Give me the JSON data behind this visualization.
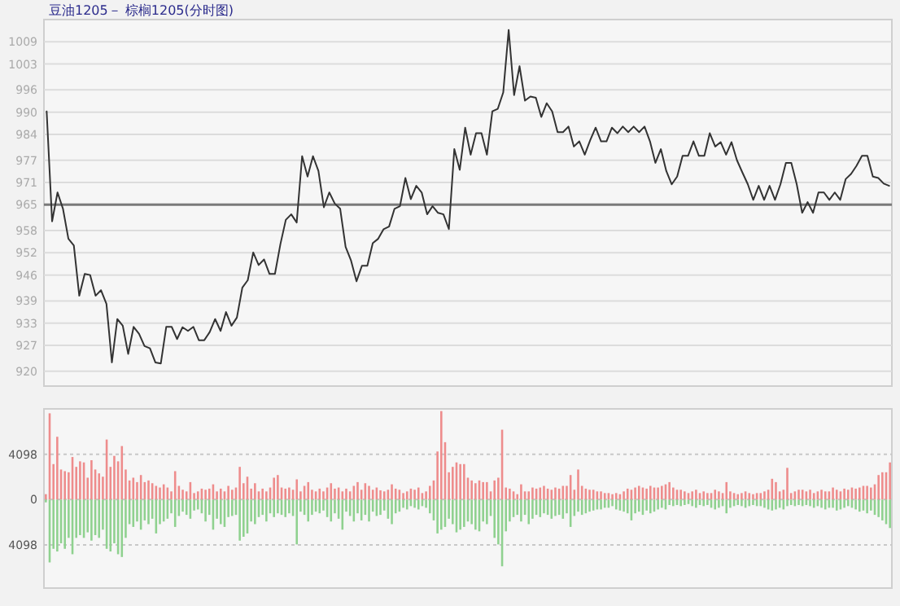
{
  "chart_data": [
    {
      "type": "line",
      "title": "豆油1205－ 棕榈1205(分时图)",
      "categories": [
        null,
        null,
        null,
        null,
        null,
        null,
        null,
        null,
        null,
        null,
        null,
        null,
        null,
        null,
        null,
        null,
        null,
        null,
        null,
        null,
        null,
        null,
        null,
        null,
        null,
        null,
        null,
        null,
        null,
        null,
        null,
        null,
        null,
        null,
        null,
        null,
        null,
        null,
        null,
        null,
        null,
        null,
        null,
        null,
        null,
        null,
        null,
        null,
        null,
        null,
        null,
        null,
        null,
        null,
        null,
        null,
        null,
        null,
        null,
        null,
        null,
        null,
        null,
        null,
        null,
        null,
        null,
        null,
        null,
        null,
        null,
        null,
        null,
        null,
        null,
        null,
        null,
        null,
        null,
        null,
        null,
        null,
        null,
        null,
        null,
        null,
        null,
        null,
        null,
        null,
        null,
        null,
        null,
        null,
        null,
        null,
        null,
        null,
        null,
        null,
        null,
        null,
        null,
        null,
        null,
        null,
        null,
        null,
        null,
        null,
        null,
        null,
        null,
        null,
        null,
        null,
        null,
        null,
        null,
        null,
        null,
        null,
        null,
        null,
        null,
        null,
        null,
        null,
        null,
        null,
        null,
        null,
        null,
        null,
        null,
        null,
        null,
        null,
        null,
        null,
        null,
        null,
        null,
        null,
        null,
        null,
        null,
        null,
        null,
        null,
        null,
        null,
        null,
        null,
        null,
        null
      ],
      "ylim": [
        916,
        1015
      ],
      "yticks": [
        920,
        927,
        933,
        939,
        946,
        952,
        958,
        965,
        971,
        977,
        984,
        990,
        996,
        1003,
        1009
      ],
      "grid": "y",
      "tick_labels": "y",
      "ref_lines": [
        {
          "axis": "y",
          "value": 965,
          "color": "#7a7a7a"
        }
      ],
      "series": [
        {
          "color": "#333333",
          "values": [
            990.2,
            960.5,
            968.3,
            963.9,
            955.8,
            954,
            940.4,
            946.3,
            946,
            940.4,
            941.9,
            938.2,
            922.4,
            934.1,
            932.3,
            924.7,
            932,
            930.1,
            926.8,
            926.2,
            922.4,
            922.1,
            932,
            932,
            928.7,
            931.9,
            930.9,
            932,
            928.4,
            928.4,
            930.6,
            934.1,
            930.9,
            936,
            932.3,
            934.5,
            942.6,
            944.6,
            952.1,
            948.7,
            950.2,
            946.3,
            946.3,
            954.3,
            960.9,
            962.4,
            960.2,
            978.1,
            972.6,
            978.1,
            974.1,
            964.3,
            968.3,
            965.3,
            963.9,
            953.6,
            949.9,
            944.3,
            948.5,
            948.5,
            954.6,
            955.8,
            958.4,
            959.1,
            963.9,
            964.6,
            972.2,
            966.5,
            970.1,
            968.3,
            962.4,
            964.6,
            962.8,
            962.4,
            958.4,
            980,
            974.4,
            985.8,
            978.5,
            984.3,
            984.3,
            978.5,
            990.2,
            990.9,
            995.3,
            1012.2,
            994.6,
            1002.4,
            993.1,
            994.2,
            993.9,
            988.7,
            992.4,
            990.2,
            984.6,
            984.6,
            986.1,
            980.7,
            982.1,
            978.5,
            982.4,
            985.8,
            982.1,
            982.1,
            985.8,
            984.3,
            986.1,
            984.6,
            986.1,
            984.6,
            986.1,
            982.1,
            976.3,
            980,
            974.1,
            970.5,
            972.6,
            978.2,
            978.2,
            982.1,
            978.2,
            978.2,
            984.3,
            980.7,
            981.9,
            978.5,
            981.9,
            977,
            973.7,
            970.5,
            966.3,
            970.1,
            966.3,
            970.1,
            966.3,
            970.5,
            976.3,
            976.3,
            970.5,
            962.8,
            965.7,
            962.8,
            968.3,
            968.3,
            966.3,
            968.3,
            966.3,
            971.9,
            973.3,
            975.5,
            978.2,
            978.2,
            972.6,
            972.2,
            970.7,
            970.1
          ]
        }
      ]
    },
    {
      "type": "bar",
      "stacked": true,
      "ylim": [
        -8000,
        8200
      ],
      "yticks": [
        {
          "value": -4098,
          "label": "4098"
        },
        0,
        4098
      ],
      "grid": "y",
      "tick_labels": "y",
      "categories": [
        null,
        null,
        null,
        null,
        null,
        null,
        null,
        null,
        null,
        null,
        null,
        null,
        null,
        null,
        null,
        null,
        null,
        null,
        null,
        null,
        null,
        null,
        null,
        null,
        null,
        null,
        null,
        null,
        null,
        null,
        null,
        null,
        null,
        null,
        null,
        null,
        null,
        null,
        null,
        null,
        null,
        null,
        null,
        null,
        null,
        null,
        null,
        null,
        null,
        null,
        null,
        null,
        null,
        null,
        null,
        null,
        null,
        null,
        null,
        null,
        null,
        null,
        null,
        null,
        null,
        null,
        null,
        null,
        null,
        null,
        null,
        null,
        null,
        null,
        null,
        null,
        null,
        null,
        null,
        null,
        null,
        null,
        null,
        null,
        null,
        null,
        null,
        null,
        null,
        null,
        null,
        null,
        null,
        null,
        null,
        null,
        null,
        null,
        null,
        null,
        null,
        null,
        null,
        null,
        null,
        null,
        null,
        null,
        null,
        null,
        null,
        null,
        null,
        null,
        null,
        null,
        null,
        null,
        null,
        null,
        null,
        null,
        null,
        null,
        null,
        null,
        null,
        null,
        null,
        null,
        null,
        null,
        null,
        null,
        null,
        null,
        null,
        null,
        null,
        null,
        null,
        null,
        null,
        null,
        null,
        null,
        null,
        null,
        null,
        null,
        null,
        null,
        null,
        null,
        null,
        null,
        null,
        null,
        null,
        null,
        null,
        null,
        null,
        null,
        null,
        null,
        null,
        null,
        null,
        null,
        null,
        null,
        null,
        null,
        null,
        null,
        null,
        null,
        null,
        null,
        null,
        null,
        null,
        null,
        null,
        null,
        null,
        null,
        null,
        null,
        null,
        null,
        null,
        null,
        null,
        null,
        null,
        null,
        null,
        null,
        null,
        null,
        null,
        null,
        null,
        null,
        null,
        null,
        null,
        null,
        null,
        null,
        null,
        null,
        null,
        null,
        null,
        null,
        null,
        null,
        null,
        null,
        null
      ],
      "series": [
        {
          "color": "#ee8c8c",
          "values": [
            490,
            7800,
            3210,
            5680,
            2720,
            2570,
            2470,
            3850,
            2960,
            3460,
            3360,
            1980,
            3560,
            2720,
            2370,
            2070,
            5430,
            2960,
            3950,
            3460,
            4840,
            2720,
            1730,
            1980,
            1580,
            2220,
            1580,
            1730,
            1480,
            1240,
            1090,
            1380,
            1090,
            740,
            2570,
            1240,
            890,
            740,
            1580,
            590,
            740,
            990,
            890,
            990,
            1380,
            740,
            990,
            740,
            1240,
            890,
            1090,
            2960,
            1480,
            2070,
            990,
            1480,
            740,
            990,
            740,
            1090,
            1980,
            2220,
            1090,
            990,
            1090,
            890,
            1830,
            740,
            1240,
            1580,
            890,
            740,
            990,
            740,
            1090,
            1480,
            990,
            1090,
            740,
            990,
            740,
            1240,
            1580,
            890,
            1480,
            1240,
            890,
            1090,
            840,
            740,
            890,
            1380,
            990,
            890,
            590,
            740,
            990,
            890,
            1090,
            590,
            740,
            1240,
            1730,
            4350,
            8000,
            5190,
            2470,
            2960,
            3360,
            3210,
            3210,
            1980,
            1730,
            1480,
            1730,
            1580,
            1580,
            740,
            1730,
            1980,
            6320,
            1090,
            990,
            740,
            490,
            1380,
            740,
            740,
            1090,
            990,
            1090,
            1240,
            990,
            890,
            1090,
            990,
            1240,
            1240,
            2220,
            890,
            2720,
            1240,
            990,
            890,
            890,
            740,
            740,
            590,
            590,
            490,
            590,
            490,
            740,
            990,
            890,
            1090,
            1240,
            1090,
            990,
            1240,
            1090,
            1090,
            1240,
            1380,
            1580,
            1090,
            890,
            890,
            740,
            590,
            740,
            890,
            590,
            740,
            590,
            590,
            890,
            740,
            590,
            1580,
            740,
            590,
            490,
            590,
            740,
            590,
            490,
            590,
            590,
            740,
            890,
            1880,
            1580,
            740,
            890,
            2870,
            590,
            740,
            890,
            890,
            740,
            890,
            590,
            740,
            890,
            740,
            740,
            1090,
            890,
            740,
            990,
            890,
            1090,
            990,
            1090,
            1240,
            1240,
            1090,
            1380,
            2220,
            2470,
            2470,
            3360
          ]
        },
        {
          "color": "#8fd18f",
          "values": [
            -250,
            -5680,
            -4450,
            -4690,
            -3950,
            -4450,
            -3460,
            -4940,
            -3460,
            -3210,
            -3460,
            -2960,
            -3710,
            -3210,
            -3460,
            -2720,
            -4450,
            -4690,
            -3950,
            -4940,
            -5190,
            -3460,
            -2220,
            -2470,
            -1980,
            -2720,
            -1880,
            -2220,
            -1730,
            -3060,
            -2220,
            -1980,
            -1730,
            -1240,
            -2470,
            -1480,
            -1090,
            -1380,
            -1730,
            -990,
            -890,
            -1240,
            -1980,
            -1380,
            -2720,
            -1730,
            -2220,
            -2470,
            -1580,
            -1480,
            -1380,
            -3710,
            -3360,
            -3060,
            -1980,
            -2220,
            -1580,
            -1380,
            -1980,
            -1240,
            -1580,
            -1240,
            -1380,
            -1580,
            -1240,
            -1480,
            -4050,
            -1090,
            -1380,
            -1980,
            -1380,
            -1090,
            -1240,
            -990,
            -1580,
            -1980,
            -1240,
            -1730,
            -2720,
            -1090,
            -1480,
            -1980,
            -1240,
            -1880,
            -1380,
            -1980,
            -1090,
            -1480,
            -1380,
            -990,
            -1730,
            -2220,
            -1240,
            -1090,
            -740,
            -890,
            -590,
            -740,
            -890,
            -590,
            -740,
            -1240,
            -1880,
            -3060,
            -2720,
            -2470,
            -1730,
            -2220,
            -2960,
            -2720,
            -2470,
            -1980,
            -2220,
            -2720,
            -2870,
            -1980,
            -2220,
            -1480,
            -3460,
            -4050,
            -6030,
            -2870,
            -1980,
            -1580,
            -1380,
            -1980,
            -1380,
            -2220,
            -1730,
            -1380,
            -1580,
            -1240,
            -1380,
            -1730,
            -1480,
            -1380,
            -1730,
            -1240,
            -2470,
            -1480,
            -1090,
            -1380,
            -1240,
            -1090,
            -990,
            -890,
            -890,
            -740,
            -740,
            -590,
            -890,
            -990,
            -1090,
            -1240,
            -1880,
            -1240,
            -1090,
            -1380,
            -990,
            -1240,
            -1090,
            -890,
            -740,
            -890,
            -490,
            -590,
            -490,
            -590,
            -490,
            -400,
            -590,
            -740,
            -490,
            -590,
            -490,
            -740,
            -890,
            -740,
            -590,
            -1240,
            -740,
            -590,
            -490,
            -590,
            -740,
            -590,
            -490,
            -590,
            -590,
            -740,
            -890,
            -990,
            -890,
            -740,
            -890,
            -590,
            -490,
            -590,
            -490,
            -590,
            -490,
            -590,
            -740,
            -590,
            -740,
            -890,
            -740,
            -740,
            -990,
            -890,
            -740,
            -590,
            -740,
            -890,
            -1090,
            -990,
            -1240,
            -990,
            -1380,
            -1580,
            -1880,
            -2220,
            -2570
          ]
        }
      ]
    }
  ]
}
